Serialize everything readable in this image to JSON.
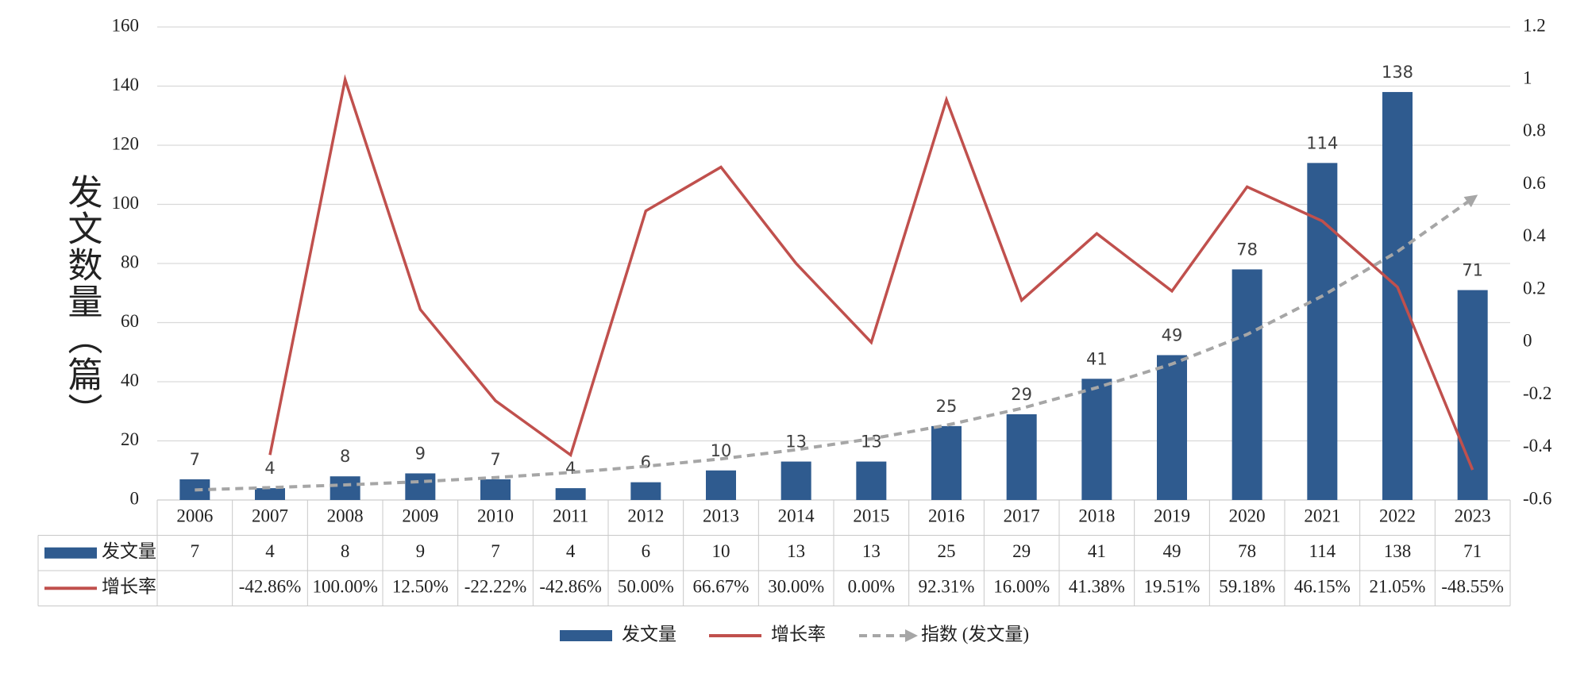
{
  "chart_data": {
    "type": "bar",
    "y_label": "发文数量（篇）",
    "categories": [
      "2006",
      "2007",
      "2008",
      "2009",
      "2010",
      "2011",
      "2012",
      "2013",
      "2014",
      "2015",
      "2016",
      "2017",
      "2018",
      "2019",
      "2020",
      "2021",
      "2022",
      "2023"
    ],
    "series": [
      {
        "name": "发文量",
        "type": "bar",
        "color": "#2f5b8f",
        "values": [
          7,
          4,
          8,
          9,
          7,
          4,
          6,
          10,
          13,
          13,
          25,
          29,
          41,
          49,
          78,
          114,
          138,
          71
        ]
      },
      {
        "name": "增长率",
        "type": "line",
        "axis": "y2",
        "color": "#c0504d",
        "values": [
          null,
          -0.4286,
          1.0,
          0.125,
          -0.2222,
          -0.4286,
          0.5,
          0.6667,
          0.3,
          0,
          0.9231,
          0.16,
          0.4138,
          0.1951,
          0.5918,
          0.4615,
          0.2105,
          -0.4855
        ],
        "value_labels": [
          null,
          "-42.86%",
          "100.00%",
          "12.50%",
          "-22.22%",
          "-42.86%",
          "50.00%",
          "66.67%",
          "30.00%",
          "0.00%",
          "92.31%",
          "16.00%",
          "41.38%",
          "19.51%",
          "59.18%",
          "46.15%",
          "21.05%",
          "-48.55%"
        ]
      },
      {
        "name": "指数 (发文量)",
        "type": "trend",
        "color": "#a6a6a6",
        "dashed": true,
        "values": [
          3.4,
          4.2,
          5.1,
          6.2,
          7.6,
          9.3,
          11.4,
          13.9,
          17.0,
          20.7,
          25.3,
          31,
          38,
          46,
          56,
          69,
          84,
          102
        ]
      }
    ],
    "ylim": [
      0,
      160
    ],
    "yticks": [
      0,
      20,
      40,
      60,
      80,
      100,
      120,
      140,
      160
    ],
    "y2lim": [
      -0.6,
      1.2
    ],
    "y2ticks": [
      -0.6,
      -0.4,
      -0.2,
      0,
      0.2,
      0.4,
      0.6,
      0.8,
      1,
      1.2
    ],
    "grid": true,
    "data_table": true,
    "legend": "bottom"
  }
}
